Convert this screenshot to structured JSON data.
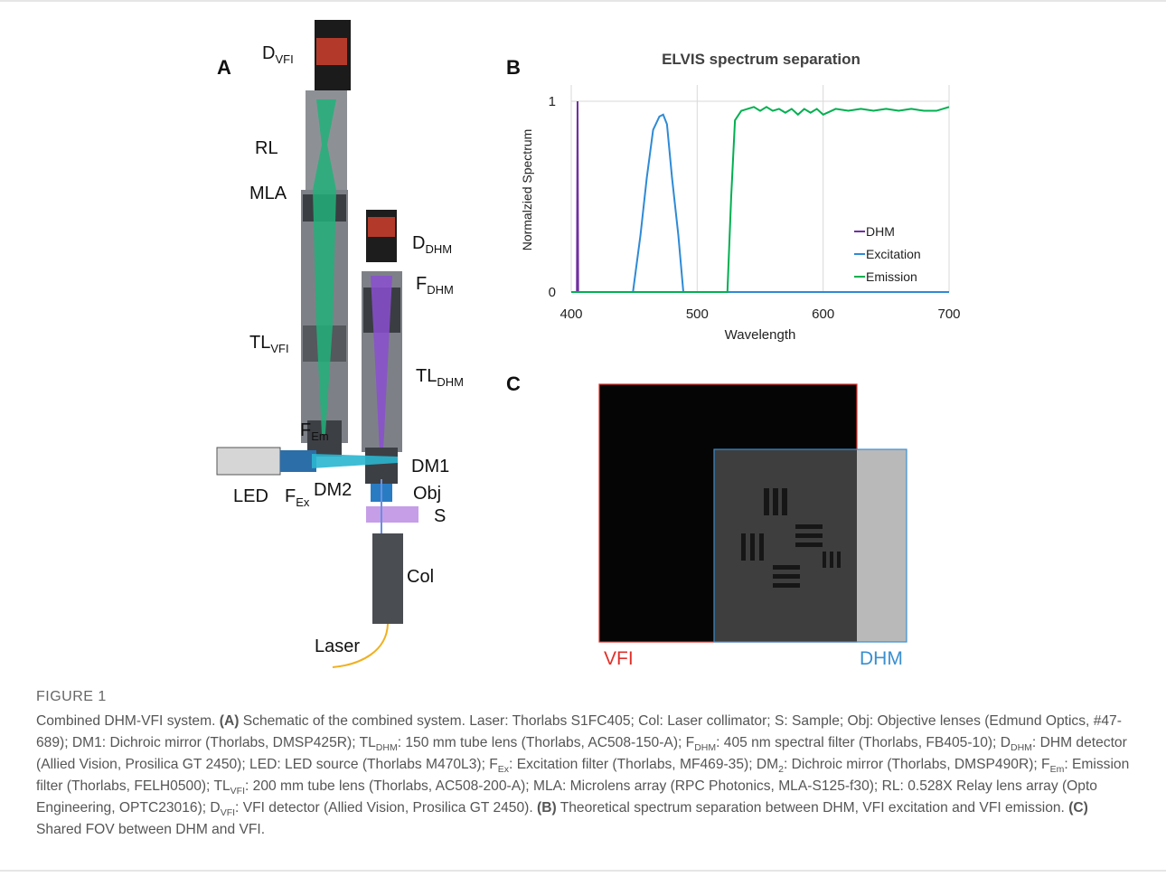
{
  "panels": {
    "a": "A",
    "b": "B",
    "c": "C"
  },
  "schematic": {
    "labels": [
      {
        "text": "D",
        "sub": "VFI"
      },
      {
        "text": "RL"
      },
      {
        "text": "MLA"
      },
      {
        "text": "D",
        "sub": "DHM"
      },
      {
        "text": "F",
        "sub": "DHM"
      },
      {
        "text": "TL",
        "sub": "VFI"
      },
      {
        "text": "TL",
        "sub": "DHM"
      },
      {
        "text": "F",
        "sub": "Em"
      },
      {
        "text": "DM1"
      },
      {
        "text": "LED"
      },
      {
        "text": "F",
        "sub": "Ex"
      },
      {
        "text": "DM2"
      },
      {
        "text": "Obj"
      },
      {
        "text": "S"
      },
      {
        "text": "Col"
      },
      {
        "text": "Laser"
      }
    ]
  },
  "chart_data": {
    "type": "line",
    "title": "ELVIS spectrum separation",
    "x_label": "Wavelength",
    "y_label": "Normalzied Spectrum",
    "xlim": [
      400,
      700
    ],
    "ylim": [
      0,
      1
    ],
    "xticks": [
      400,
      500,
      600,
      700
    ],
    "yticks": [
      0,
      1
    ],
    "grid": true,
    "legend": "lower right",
    "series": [
      {
        "name": "DHM",
        "color": "#7030a0",
        "x": [
          400,
          404.5,
          405,
          405.5,
          406
        ],
        "values": [
          0,
          0,
          1,
          0,
          0
        ]
      },
      {
        "name": "Excitation",
        "color": "#2e8ad6",
        "x": [
          400,
          449,
          455,
          460,
          465,
          470,
          473,
          476,
          480,
          485,
          489,
          700
        ],
        "values": [
          0,
          0,
          0.3,
          0.6,
          0.85,
          0.92,
          0.93,
          0.88,
          0.6,
          0.3,
          0,
          0
        ]
      },
      {
        "name": "Emission",
        "color": "#00b050",
        "x": [
          400,
          524,
          527,
          530,
          535,
          540,
          545,
          550,
          555,
          560,
          565,
          570,
          575,
          580,
          585,
          590,
          595,
          600,
          610,
          620,
          630,
          640,
          650,
          660,
          670,
          680,
          690,
          700
        ],
        "values": [
          0,
          0,
          0.5,
          0.9,
          0.95,
          0.96,
          0.97,
          0.95,
          0.97,
          0.95,
          0.96,
          0.94,
          0.96,
          0.93,
          0.96,
          0.94,
          0.96,
          0.93,
          0.96,
          0.95,
          0.96,
          0.95,
          0.96,
          0.95,
          0.96,
          0.95,
          0.95,
          0.97
        ]
      }
    ]
  },
  "fov": {
    "vfi_label": "VFI",
    "dhm_label": "DHM"
  },
  "figure_label": "FIGURE 1",
  "caption": [
    {
      "text": "Combined DHM-VFI system. "
    },
    {
      "text": "(A)",
      "bold": true
    },
    {
      "text": " Schematic of the combined system. Laser: Thorlabs S1FC405; Col: Laser collimator; S: Sample; Obj: Objective lenses (Edmund Optics, #47-689); DM1: Dichroic mirror (Thorlabs, DMSP425R); TL"
    },
    {
      "text": "DHM",
      "sub": true
    },
    {
      "text": ": 150 mm tube lens (Thorlabs, AC508-150-A); F"
    },
    {
      "text": "DHM",
      "sub": true
    },
    {
      "text": ": 405 nm spectral filter (Thorlabs, FB405-10); D"
    },
    {
      "text": "DHM",
      "sub": true
    },
    {
      "text": ": DHM detector (Allied Vision, Prosilica GT 2450); LED: LED source (Thorlabs M470L3); F"
    },
    {
      "text": "Ex",
      "sub": true
    },
    {
      "text": ": Excitation filter (Thorlabs, MF469-35); DM"
    },
    {
      "text": "2",
      "sub": true
    },
    {
      "text": ": Dichroic mirror (Thorlabs, DMSP490R); F"
    },
    {
      "text": "Em",
      "sub": true
    },
    {
      "text": ": Emission filter (Thorlabs, FELH0500); TL"
    },
    {
      "text": "VFI",
      "sub": true
    },
    {
      "text": ": 200 mm tube lens (Thorlabs, AC508-200-A); MLA: Microlens array (RPC Photonics, MLA-S125-f30); RL: 0.528X Relay lens array (Opto Engineering, OPTC23016); D"
    },
    {
      "text": "VFI",
      "sub": true
    },
    {
      "text": ": VFI detector (Allied Vision, Prosilica GT 2450). "
    },
    {
      "text": "(B)",
      "bold": true
    },
    {
      "text": " Theoretical spectrum separation between DHM, VFI excitation and VFI emission. "
    },
    {
      "text": "(C)",
      "bold": true
    },
    {
      "text": " Shared FOV between DHM and VFI."
    }
  ]
}
